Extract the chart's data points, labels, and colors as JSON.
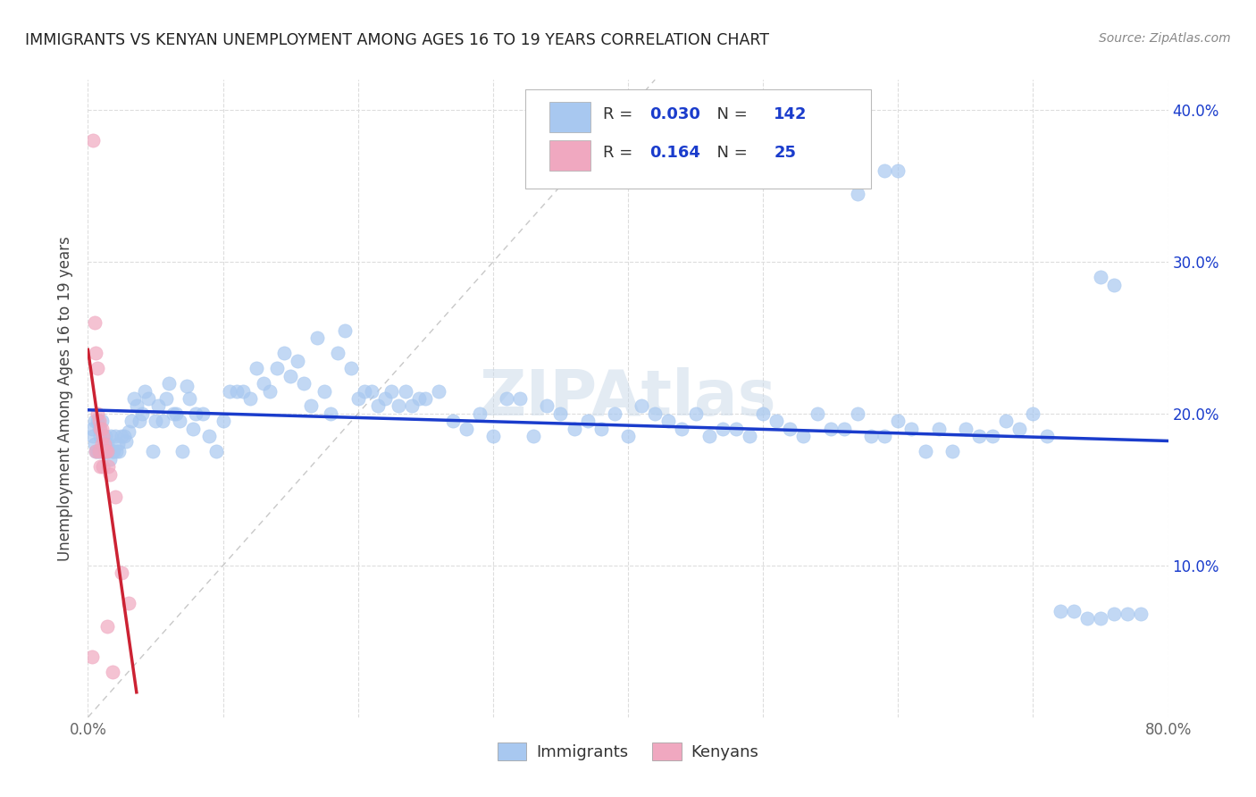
{
  "title": "IMMIGRANTS VS KENYAN UNEMPLOYMENT AMONG AGES 16 TO 19 YEARS CORRELATION CHART",
  "source": "Source: ZipAtlas.com",
  "ylabel": "Unemployment Among Ages 16 to 19 years",
  "xlim": [
    0.0,
    0.8
  ],
  "ylim": [
    0.0,
    0.42
  ],
  "immigrants_R": "0.030",
  "immigrants_N": "142",
  "kenyans_R": "0.164",
  "kenyans_N": "25",
  "immigrant_color": "#a8c8f0",
  "kenyan_color": "#f0a8c0",
  "trend_immigrant_color": "#1a3ccc",
  "trend_kenyan_color": "#cc2233",
  "diagonal_color": "#c8c8c8",
  "background_color": "#ffffff",
  "watermark_color": "#c8d8e8",
  "title_color": "#222222",
  "source_color": "#888888",
  "label_color": "#444444",
  "tick_color": "#666666",
  "grid_color": "#dddddd",
  "legend_border_color": "#bbbbbb",
  "legend_value_color": "#1a3ccc",
  "imm_x": [
    0.003,
    0.004,
    0.005,
    0.005,
    0.006,
    0.007,
    0.007,
    0.008,
    0.008,
    0.009,
    0.01,
    0.01,
    0.011,
    0.012,
    0.013,
    0.013,
    0.014,
    0.015,
    0.016,
    0.017,
    0.018,
    0.019,
    0.02,
    0.021,
    0.022,
    0.023,
    0.025,
    0.027,
    0.028,
    0.03,
    0.032,
    0.034,
    0.036,
    0.038,
    0.04,
    0.042,
    0.045,
    0.048,
    0.05,
    0.052,
    0.055,
    0.058,
    0.06,
    0.063,
    0.065,
    0.068,
    0.07,
    0.073,
    0.075,
    0.078,
    0.08,
    0.085,
    0.09,
    0.095,
    0.1,
    0.105,
    0.11,
    0.115,
    0.12,
    0.125,
    0.13,
    0.135,
    0.14,
    0.145,
    0.15,
    0.155,
    0.16,
    0.165,
    0.17,
    0.175,
    0.18,
    0.185,
    0.19,
    0.195,
    0.2,
    0.205,
    0.21,
    0.215,
    0.22,
    0.225,
    0.23,
    0.235,
    0.24,
    0.245,
    0.25,
    0.26,
    0.27,
    0.28,
    0.29,
    0.3,
    0.31,
    0.32,
    0.33,
    0.34,
    0.35,
    0.36,
    0.37,
    0.38,
    0.39,
    0.4,
    0.41,
    0.42,
    0.43,
    0.44,
    0.45,
    0.46,
    0.47,
    0.48,
    0.49,
    0.5,
    0.51,
    0.52,
    0.53,
    0.54,
    0.55,
    0.56,
    0.57,
    0.58,
    0.59,
    0.6,
    0.61,
    0.62,
    0.63,
    0.64,
    0.65,
    0.66,
    0.67,
    0.68,
    0.69,
    0.7,
    0.71,
    0.72,
    0.73,
    0.74,
    0.75,
    0.76,
    0.77,
    0.78,
    0.75,
    0.76,
    0.59,
    0.6,
    0.57
  ],
  "imm_y": [
    0.19,
    0.185,
    0.195,
    0.18,
    0.175,
    0.175,
    0.195,
    0.175,
    0.19,
    0.185,
    0.175,
    0.195,
    0.175,
    0.18,
    0.185,
    0.175,
    0.18,
    0.175,
    0.17,
    0.185,
    0.175,
    0.175,
    0.185,
    0.175,
    0.18,
    0.175,
    0.185,
    0.185,
    0.182,
    0.188,
    0.195,
    0.21,
    0.205,
    0.195,
    0.2,
    0.215,
    0.21,
    0.175,
    0.195,
    0.205,
    0.195,
    0.21,
    0.22,
    0.2,
    0.2,
    0.195,
    0.175,
    0.218,
    0.21,
    0.19,
    0.2,
    0.2,
    0.185,
    0.175,
    0.195,
    0.215,
    0.215,
    0.215,
    0.21,
    0.23,
    0.22,
    0.215,
    0.23,
    0.24,
    0.225,
    0.235,
    0.22,
    0.205,
    0.25,
    0.215,
    0.2,
    0.24,
    0.255,
    0.23,
    0.21,
    0.215,
    0.215,
    0.205,
    0.21,
    0.215,
    0.205,
    0.215,
    0.205,
    0.21,
    0.21,
    0.215,
    0.195,
    0.19,
    0.2,
    0.185,
    0.21,
    0.21,
    0.185,
    0.205,
    0.2,
    0.19,
    0.195,
    0.19,
    0.2,
    0.185,
    0.205,
    0.2,
    0.195,
    0.19,
    0.2,
    0.185,
    0.19,
    0.19,
    0.185,
    0.2,
    0.195,
    0.19,
    0.185,
    0.2,
    0.19,
    0.19,
    0.2,
    0.185,
    0.185,
    0.195,
    0.19,
    0.175,
    0.19,
    0.175,
    0.19,
    0.185,
    0.185,
    0.195,
    0.19,
    0.2,
    0.185,
    0.07,
    0.07,
    0.065,
    0.065,
    0.068,
    0.068,
    0.068,
    0.29,
    0.285,
    0.36,
    0.36,
    0.345
  ],
  "ken_x": [
    0.003,
    0.004,
    0.005,
    0.006,
    0.006,
    0.007,
    0.007,
    0.008,
    0.008,
    0.009,
    0.009,
    0.01,
    0.01,
    0.011,
    0.011,
    0.012,
    0.013,
    0.014,
    0.014,
    0.015,
    0.016,
    0.018,
    0.02,
    0.025,
    0.03
  ],
  "ken_y": [
    0.04,
    0.38,
    0.26,
    0.24,
    0.175,
    0.2,
    0.23,
    0.175,
    0.195,
    0.165,
    0.19,
    0.18,
    0.19,
    0.185,
    0.165,
    0.18,
    0.175,
    0.06,
    0.175,
    0.165,
    0.16,
    0.03,
    0.145,
    0.095,
    0.075
  ]
}
